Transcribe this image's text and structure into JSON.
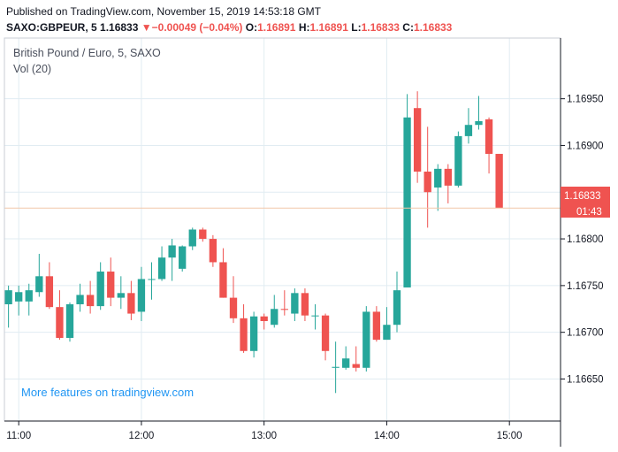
{
  "header": {
    "published": "Published on TradingView.com, November 15, 2019 14:53:18 GMT",
    "symbol": "SAXO:GBPEUR, 5",
    "last": "1.16833",
    "change_arrow": "▼",
    "change": "−0.00049 (−0.04%)",
    "o_label": "O:",
    "o_value": "1.16891",
    "h_label": "H:",
    "h_value": "1.16891",
    "l_label": "L:",
    "l_value": "1.16833",
    "c_label": "C:",
    "c_value": "1.16833"
  },
  "legend": {
    "title": "British Pound / Euro, 5, SAXO",
    "volume": "Vol (20)"
  },
  "promo": "More features on tradingview.com",
  "colors": {
    "up": "#26a69a",
    "down": "#ef5350",
    "grid": "#e1ecf2",
    "axis_text": "#131722",
    "price_line": "#f2c7a9",
    "promo": "#2196f3"
  },
  "chart_data": {
    "type": "candlestick",
    "interval": "5m",
    "ylim": [
      1.16605,
      1.17015
    ],
    "y_ticks": [
      1.1695,
      1.169,
      1.1685,
      1.168,
      1.1675,
      1.167,
      1.1665
    ],
    "y_tick_labels": [
      "1.16950",
      "1.16900",
      "1.16850",
      "1.16800",
      "1.16750",
      "1.16700",
      "1.16650"
    ],
    "x_ticks": [
      "11:00",
      "12:00",
      "13:00",
      "14:00",
      "15:00"
    ],
    "x_tick_minutes": [
      660,
      720,
      780,
      840,
      900
    ],
    "xlim_minutes": [
      653,
      925
    ],
    "last_price": "1.16833",
    "countdown": "01:43",
    "candles": [
      {
        "t": 655,
        "o": 1.1673,
        "h": 1.1675,
        "l": 1.16705,
        "c": 1.16745
      },
      {
        "t": 660,
        "o": 1.16733,
        "h": 1.1675,
        "l": 1.16718,
        "c": 1.16743
      },
      {
        "t": 665,
        "o": 1.16733,
        "h": 1.16752,
        "l": 1.16718,
        "c": 1.16745
      },
      {
        "t": 670,
        "o": 1.16743,
        "h": 1.16784,
        "l": 1.16738,
        "c": 1.1676
      },
      {
        "t": 675,
        "o": 1.1676,
        "h": 1.16775,
        "l": 1.16725,
        "c": 1.16727
      },
      {
        "t": 680,
        "o": 1.16727,
        "h": 1.16745,
        "l": 1.16692,
        "c": 1.16694
      },
      {
        "t": 685,
        "o": 1.16694,
        "h": 1.16732,
        "l": 1.1669,
        "c": 1.1673
      },
      {
        "t": 690,
        "o": 1.1673,
        "h": 1.16752,
        "l": 1.16722,
        "c": 1.1674
      },
      {
        "t": 695,
        "o": 1.1674,
        "h": 1.16755,
        "l": 1.1672,
        "c": 1.16728
      },
      {
        "t": 700,
        "o": 1.16728,
        "h": 1.16775,
        "l": 1.16724,
        "c": 1.16765
      },
      {
        "t": 705,
        "o": 1.16765,
        "h": 1.1678,
        "l": 1.16728,
        "c": 1.16737
      },
      {
        "t": 710,
        "o": 1.16737,
        "h": 1.1676,
        "l": 1.16725,
        "c": 1.16742
      },
      {
        "t": 715,
        "o": 1.16742,
        "h": 1.16755,
        "l": 1.16713,
        "c": 1.1672
      },
      {
        "t": 720,
        "o": 1.16722,
        "h": 1.1677,
        "l": 1.16712,
        "c": 1.16757
      },
      {
        "t": 725,
        "o": 1.16757,
        "h": 1.16775,
        "l": 1.16735,
        "c": 1.16757
      },
      {
        "t": 730,
        "o": 1.16757,
        "h": 1.16792,
        "l": 1.16755,
        "c": 1.1678
      },
      {
        "t": 735,
        "o": 1.1678,
        "h": 1.168,
        "l": 1.16755,
        "c": 1.16793
      },
      {
        "t": 740,
        "o": 1.16768,
        "h": 1.16793,
        "l": 1.16765,
        "c": 1.16792
      },
      {
        "t": 745,
        "o": 1.16792,
        "h": 1.16812,
        "l": 1.16788,
        "c": 1.1681
      },
      {
        "t": 750,
        "o": 1.1681,
        "h": 1.16812,
        "l": 1.16797,
        "c": 1.168
      },
      {
        "t": 755,
        "o": 1.168,
        "h": 1.16804,
        "l": 1.1677,
        "c": 1.16775
      },
      {
        "t": 760,
        "o": 1.16775,
        "h": 1.1679,
        "l": 1.16737,
        "c": 1.16737
      },
      {
        "t": 765,
        "o": 1.16737,
        "h": 1.1676,
        "l": 1.1671,
        "c": 1.16715
      },
      {
        "t": 770,
        "o": 1.16715,
        "h": 1.1673,
        "l": 1.16678,
        "c": 1.1668
      },
      {
        "t": 775,
        "o": 1.1668,
        "h": 1.16722,
        "l": 1.16673,
        "c": 1.16717
      },
      {
        "t": 780,
        "o": 1.16717,
        "h": 1.1672,
        "l": 1.16703,
        "c": 1.16712
      },
      {
        "t": 785,
        "o": 1.16708,
        "h": 1.1674,
        "l": 1.16705,
        "c": 1.16725
      },
      {
        "t": 790,
        "o": 1.16725,
        "h": 1.16745,
        "l": 1.16718,
        "c": 1.16724
      },
      {
        "t": 795,
        "o": 1.1672,
        "h": 1.16747,
        "l": 1.16712,
        "c": 1.16742
      },
      {
        "t": 800,
        "o": 1.16742,
        "h": 1.16747,
        "l": 1.16712,
        "c": 1.16718
      },
      {
        "t": 805,
        "o": 1.16718,
        "h": 1.1673,
        "l": 1.16703,
        "c": 1.16718
      },
      {
        "t": 810,
        "o": 1.16718,
        "h": 1.1672,
        "l": 1.1667,
        "c": 1.1668
      },
      {
        "t": 815,
        "o": 1.16662,
        "h": 1.1669,
        "l": 1.16635,
        "c": 1.16663
      },
      {
        "t": 820,
        "o": 1.16662,
        "h": 1.16685,
        "l": 1.1666,
        "c": 1.16672
      },
      {
        "t": 825,
        "o": 1.16666,
        "h": 1.16685,
        "l": 1.16658,
        "c": 1.16662
      },
      {
        "t": 830,
        "o": 1.16662,
        "h": 1.16728,
        "l": 1.16658,
        "c": 1.16722
      },
      {
        "t": 835,
        "o": 1.16722,
        "h": 1.16728,
        "l": 1.1669,
        "c": 1.16692
      },
      {
        "t": 840,
        "o": 1.16692,
        "h": 1.16727,
        "l": 1.16693,
        "c": 1.16708
      },
      {
        "t": 845,
        "o": 1.16708,
        "h": 1.16765,
        "l": 1.167,
        "c": 1.16745
      },
      {
        "t": 850,
        "o": 1.16748,
        "h": 1.16955,
        "l": 1.16748,
        "c": 1.1693
      },
      {
        "t": 855,
        "o": 1.1694,
        "h": 1.16958,
        "l": 1.1686,
        "c": 1.16872
      },
      {
        "t": 860,
        "o": 1.16872,
        "h": 1.1692,
        "l": 1.16812,
        "c": 1.1685
      },
      {
        "t": 865,
        "o": 1.16855,
        "h": 1.1688,
        "l": 1.1683,
        "c": 1.16875
      },
      {
        "t": 870,
        "o": 1.16875,
        "h": 1.1688,
        "l": 1.16838,
        "c": 1.16857
      },
      {
        "t": 875,
        "o": 1.16857,
        "h": 1.16915,
        "l": 1.16855,
        "c": 1.1691
      },
      {
        "t": 880,
        "o": 1.1691,
        "h": 1.1694,
        "l": 1.16902,
        "c": 1.16922
      },
      {
        "t": 885,
        "o": 1.16922,
        "h": 1.16953,
        "l": 1.16917,
        "c": 1.16926
      },
      {
        "t": 890,
        "o": 1.16928,
        "h": 1.1693,
        "l": 1.1687,
        "c": 1.16891
      },
      {
        "t": 895,
        "o": 1.16891,
        "h": 1.16891,
        "l": 1.16833,
        "c": 1.16833
      }
    ]
  }
}
